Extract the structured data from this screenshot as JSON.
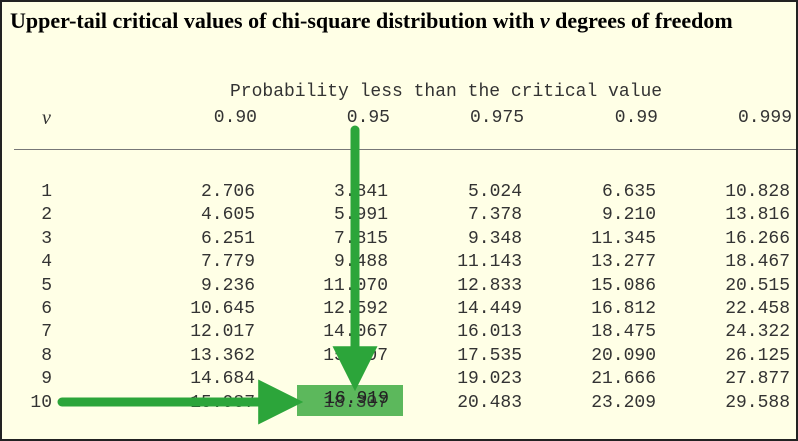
{
  "title": "Upper-tail critical values of chi-square distribution with ν degrees of freedom",
  "table": {
    "spanning_header": "Probability less than the critical value",
    "nu_header": "ν",
    "columns": [
      "0.90",
      "0.95",
      "0.975",
      "0.99",
      "0.999"
    ],
    "rows": [
      {
        "nu": "1",
        "values": [
          "2.706",
          "3.841",
          "5.024",
          "6.635",
          "10.828"
        ]
      },
      {
        "nu": "2",
        "values": [
          "4.605",
          "5.991",
          "7.378",
          "9.210",
          "13.816"
        ]
      },
      {
        "nu": "3",
        "values": [
          "6.251",
          "7.815",
          "9.348",
          "11.345",
          "16.266"
        ]
      },
      {
        "nu": "4",
        "values": [
          "7.779",
          "9.488",
          "11.143",
          "13.277",
          "18.467"
        ]
      },
      {
        "nu": "5",
        "values": [
          "9.236",
          "11.070",
          "12.833",
          "15.086",
          "20.515"
        ]
      },
      {
        "nu": "6",
        "values": [
          "10.645",
          "12.592",
          "14.449",
          "16.812",
          "22.458"
        ]
      },
      {
        "nu": "7",
        "values": [
          "12.017",
          "14.067",
          "16.013",
          "18.475",
          "24.322"
        ]
      },
      {
        "nu": "8",
        "values": [
          "13.362",
          "15.507",
          "17.535",
          "20.090",
          "26.125"
        ]
      },
      {
        "nu": "9",
        "values": [
          "14.684",
          "16.919",
          "19.023",
          "21.666",
          "27.877"
        ]
      },
      {
        "nu": "10",
        "values": [
          "15.987",
          "18.307",
          "20.483",
          "23.209",
          "29.588"
        ]
      }
    ],
    "highlight": {
      "row": 9,
      "column": "0.95",
      "value": "16.919"
    }
  },
  "colors": {
    "background": "#ffffe6",
    "highlight": "#5cb85c",
    "arrow": "#2ca53a"
  }
}
